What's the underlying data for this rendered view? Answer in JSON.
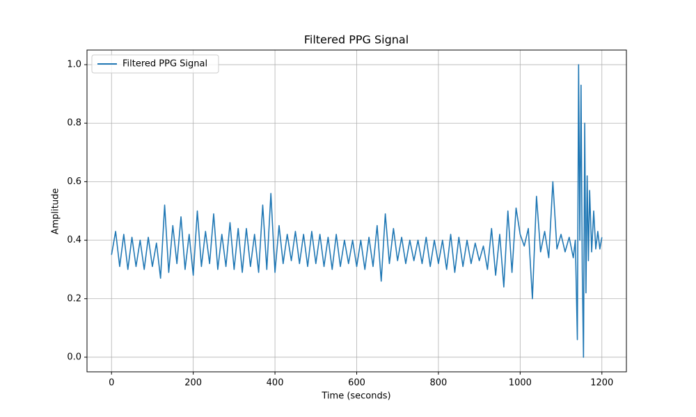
{
  "chart_data": {
    "type": "line",
    "title": "Filtered PPG Signal",
    "xlabel": "Time (seconds)",
    "ylabel": "Amplitude",
    "x": [
      0,
      10,
      20,
      30,
      40,
      50,
      60,
      70,
      80,
      90,
      100,
      110,
      120,
      130,
      140,
      150,
      160,
      170,
      180,
      190,
      200,
      210,
      220,
      230,
      240,
      250,
      260,
      270,
      280,
      290,
      300,
      310,
      320,
      330,
      340,
      350,
      360,
      370,
      380,
      390,
      400,
      410,
      420,
      430,
      440,
      450,
      460,
      470,
      480,
      490,
      500,
      510,
      520,
      530,
      540,
      550,
      560,
      570,
      580,
      590,
      600,
      610,
      620,
      630,
      640,
      650,
      660,
      670,
      680,
      690,
      700,
      710,
      720,
      730,
      740,
      750,
      760,
      770,
      780,
      790,
      800,
      810,
      820,
      830,
      840,
      850,
      860,
      870,
      880,
      890,
      900,
      910,
      920,
      930,
      940,
      950,
      960,
      970,
      980,
      990,
      1000,
      1010,
      1020,
      1030,
      1040,
      1050,
      1060,
      1070,
      1080,
      1090,
      1100,
      1110,
      1120,
      1130,
      1135,
      1140,
      1143,
      1146,
      1149,
      1152,
      1155,
      1158,
      1161,
      1164,
      1167,
      1170,
      1175,
      1180,
      1185,
      1190,
      1195,
      1200
    ],
    "series": [
      {
        "name": "Filtered PPG Signal",
        "color": "#1f77b4",
        "values": [
          0.35,
          0.43,
          0.31,
          0.42,
          0.3,
          0.41,
          0.31,
          0.4,
          0.3,
          0.41,
          0.31,
          0.39,
          0.27,
          0.52,
          0.29,
          0.45,
          0.32,
          0.48,
          0.3,
          0.42,
          0.28,
          0.5,
          0.31,
          0.43,
          0.32,
          0.49,
          0.3,
          0.42,
          0.31,
          0.46,
          0.3,
          0.44,
          0.29,
          0.44,
          0.31,
          0.42,
          0.29,
          0.52,
          0.3,
          0.56,
          0.29,
          0.45,
          0.32,
          0.42,
          0.33,
          0.43,
          0.32,
          0.42,
          0.31,
          0.43,
          0.32,
          0.42,
          0.31,
          0.41,
          0.3,
          0.42,
          0.31,
          0.4,
          0.32,
          0.4,
          0.31,
          0.4,
          0.3,
          0.41,
          0.31,
          0.45,
          0.26,
          0.49,
          0.32,
          0.44,
          0.33,
          0.41,
          0.32,
          0.4,
          0.33,
          0.4,
          0.32,
          0.41,
          0.31,
          0.4,
          0.32,
          0.4,
          0.3,
          0.42,
          0.29,
          0.41,
          0.31,
          0.4,
          0.32,
          0.39,
          0.33,
          0.38,
          0.3,
          0.44,
          0.28,
          0.42,
          0.24,
          0.5,
          0.29,
          0.51,
          0.42,
          0.38,
          0.44,
          0.2,
          0.55,
          0.36,
          0.43,
          0.34,
          0.6,
          0.37,
          0.42,
          0.36,
          0.41,
          0.34,
          0.4,
          0.06,
          1.0,
          0.4,
          0.93,
          0.3,
          0.0,
          0.8,
          0.22,
          0.62,
          0.33,
          0.57,
          0.36,
          0.5,
          0.37,
          0.43,
          0.37,
          0.41
        ]
      }
    ],
    "xlim": [
      -60,
      1260
    ],
    "xticks": [
      0,
      200,
      400,
      600,
      800,
      1000,
      1200
    ],
    "ylim": [
      -0.05,
      1.05
    ],
    "yticks": [
      {
        "value": 0,
        "label": "0.0"
      },
      {
        "value": 0.2,
        "label": "0.2"
      },
      {
        "value": 0.4,
        "label": "0.4"
      },
      {
        "value": 0.6,
        "label": "0.6"
      },
      {
        "value": 0.8,
        "label": "0.8"
      },
      {
        "value": 1.0,
        "label": "1.0"
      }
    ],
    "grid": true,
    "legend": "upper-left"
  }
}
